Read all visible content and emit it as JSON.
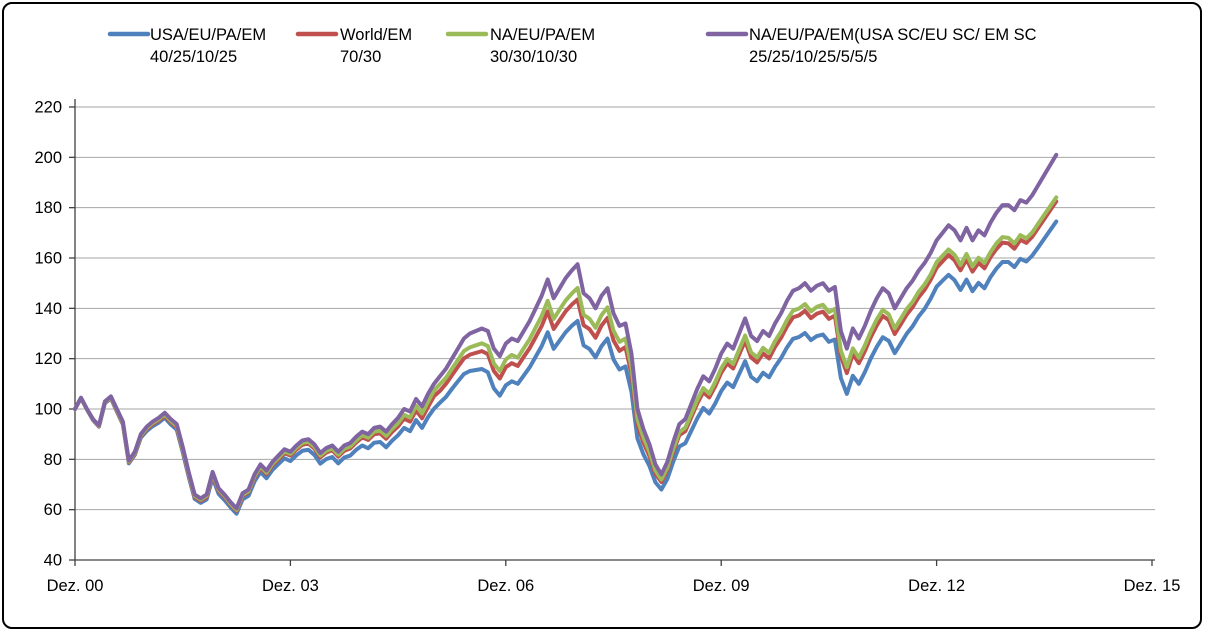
{
  "chart_data": {
    "type": "line",
    "title": "",
    "xlabel": "",
    "ylabel": "",
    "grid": true,
    "legend_position": "top",
    "x_axis": {
      "tick_labels": [
        "Dez. 00",
        "Dez. 03",
        "Dez. 06",
        "Dez. 09",
        "Dez. 12",
        "Dez. 15"
      ],
      "tick_month_index": [
        0,
        36,
        72,
        108,
        144,
        180
      ],
      "months_total": 180,
      "data_start_label": "Dez. 00",
      "data_points_monthly": 165
    },
    "y_axis": {
      "min": 40,
      "max": 220,
      "step": 20,
      "tick_labels": [
        "220",
        "200",
        "180",
        "160",
        "140",
        "120",
        "100",
        "80",
        "60",
        "40"
      ]
    },
    "colors": {
      "grid": "#A6A6A6",
      "axis": "#404040",
      "text": "#000000",
      "background": "#FFFFFF",
      "border": "#000000"
    },
    "series": [
      {
        "name": "USA/EU/PA/EM",
        "weights": "40/25/10/25",
        "color": "#4F81BD",
        "values": [
          100,
          104.4,
          99.8,
          95.6,
          93,
          102.3,
          104.2,
          99,
          93.9,
          78.4,
          81.8,
          88.6,
          91.3,
          93.2,
          94.6,
          96.5,
          93.9,
          91.8,
          82.9,
          73.1,
          64.3,
          62.7,
          64.1,
          72.7,
          66.3,
          63.8,
          60.9,
          58.4,
          64.1,
          65.5,
          71.2,
          75,
          72.5,
          75.8,
          78.1,
          80.4,
          79.3,
          81.6,
          83.4,
          83.8,
          81.8,
          78.3,
          80.1,
          80.9,
          78.4,
          80.7,
          81.5,
          83.8,
          85.5,
          84.4,
          86.6,
          86.9,
          84.8,
          87.4,
          89.6,
          92.5,
          91.2,
          95.6,
          92.5,
          96.8,
          100.1,
          102.5,
          104.8,
          108,
          111,
          113.9,
          115.1,
          115.5,
          115.9,
          114.6,
          108.2,
          105.3,
          109.4,
          111,
          110,
          113.3,
          116.6,
          120.8,
          125,
          130.5,
          123.9,
          127.2,
          130.5,
          133,
          135,
          125.3,
          123.8,
          120.5,
          125,
          128,
          119.7,
          115.7,
          116.9,
          106.8,
          88.3,
          82,
          77.4,
          70.9,
          68,
          72.2,
          79.2,
          85.1,
          86.4,
          91.3,
          96.3,
          100.4,
          98.2,
          102.2,
          107.1,
          110.5,
          108.7,
          113.9,
          119,
          112.8,
          111,
          114.4,
          112.6,
          116.8,
          120.2,
          124.5,
          127.9,
          128.6,
          130.2,
          127.4,
          129,
          129.6,
          126.7,
          127.6,
          112.3,
          106,
          113.2,
          110,
          114.6,
          120.1,
          124.7,
          128.5,
          127.1,
          122.2,
          126,
          129.9,
          132.9,
          136.8,
          139.8,
          143.8,
          148.6,
          151,
          153.3,
          151.2,
          147.3,
          151.4,
          146.8,
          150.1,
          148,
          152.4,
          155.8,
          158.4,
          158.4,
          156.4,
          159.7,
          158.6,
          161,
          164.3,
          167.7,
          171.1,
          174.5
        ]
      },
      {
        "name": "World/EM",
        "weights": "70/30",
        "color": "#C0504D",
        "values": [
          100,
          104.3,
          99.8,
          95.8,
          93.1,
          102.6,
          104.4,
          99.3,
          94.2,
          78.8,
          82.2,
          89.1,
          92.1,
          94,
          95.4,
          97.3,
          94.8,
          92.7,
          83.8,
          73.9,
          65,
          63.5,
          65,
          73.9,
          67.5,
          65,
          62,
          59.5,
          65.4,
          66.9,
          72.7,
          76.6,
          74.1,
          77.6,
          80,
          82.4,
          81.5,
          83.9,
          85.8,
          86.3,
          84.3,
          80.8,
          82.7,
          83.6,
          81.1,
          83.4,
          84.3,
          86.7,
          88.7,
          87.7,
          90,
          90.3,
          88.2,
          90.9,
          93.1,
          96.2,
          95,
          99.5,
          96.3,
          100.8,
          105.1,
          107.2,
          110,
          113.4,
          116.8,
          120.1,
          121.6,
          122.3,
          123,
          121.8,
          115.1,
          112.1,
          116.6,
          118.2,
          117.1,
          120.7,
          124.2,
          128.6,
          133,
          138.8,
          131.8,
          135.3,
          138.8,
          141.4,
          143.5,
          133.3,
          131.7,
          128.3,
          133.2,
          136.2,
          127.2,
          123.1,
          124.6,
          113.9,
          93.7,
          86.6,
          81.3,
          74.3,
          71,
          75.7,
          83.1,
          89.6,
          91.2,
          96.7,
          102.2,
          106.7,
          104.6,
          109,
          114.4,
          118.1,
          116.1,
          121.6,
          127.1,
          120.5,
          118.5,
          122.1,
          120.1,
          124.7,
          128.3,
          132.8,
          136.4,
          137.2,
          139,
          136.1,
          137.9,
          138.7,
          135.8,
          137.1,
          120.9,
          114.3,
          121.8,
          118.2,
          122.9,
          128.5,
          133.2,
          137,
          135.3,
          129.8,
          133.6,
          137.5,
          140.5,
          144.4,
          147.4,
          151.3,
          156.1,
          158.7,
          161.2,
          159.1,
          155.1,
          159.5,
          154.6,
          158.1,
          155.9,
          160.3,
          163.6,
          166.1,
          165.8,
          163.7,
          167.2,
          166,
          168.5,
          172,
          175.5,
          179,
          182.5
        ]
      },
      {
        "name": "NA/EU/PA/EM",
        "weights": "30/30/10/30",
        "color": "#9BBB59",
        "values": [
          100,
          104.4,
          99.9,
          95.9,
          93.3,
          102.8,
          104.6,
          99.6,
          94.5,
          79.1,
          82.6,
          89.5,
          92.5,
          94.5,
          95.9,
          97.9,
          95.3,
          93.3,
          84.3,
          74.4,
          65.5,
          64,
          65.5,
          74.4,
          68,
          65.5,
          62.4,
          59.9,
          65.9,
          67.3,
          73.3,
          77.2,
          74.7,
          78.2,
          80.6,
          83.1,
          82.2,
          84.6,
          86.5,
          87,
          85,
          81.5,
          83.4,
          84.3,
          81.8,
          84.2,
          85.1,
          87.5,
          89.6,
          88.6,
          91,
          91.4,
          89.3,
          92.1,
          94.4,
          97.7,
          96.6,
          101.3,
          98.2,
          102.9,
          107.3,
          109.9,
          112.4,
          116,
          119.5,
          123,
          124.5,
          125.3,
          126.1,
          125,
          118.1,
          115.1,
          119.7,
          121.5,
          120.4,
          124.1,
          127.8,
          132.4,
          137,
          143,
          135.8,
          139.5,
          143.1,
          145.8,
          148.1,
          137.5,
          135.8,
          132.3,
          137.3,
          140.4,
          131.1,
          126.7,
          128,
          116.8,
          96,
          88.6,
          83,
          75.6,
          72,
          76.7,
          84.3,
          90.8,
          92.6,
          98.1,
          103.7,
          108.3,
          106.1,
          110.7,
          116.1,
          119.9,
          117.9,
          123.6,
          129.2,
          122.5,
          120.5,
          124.3,
          122.3,
          127,
          130.7,
          135.4,
          139.1,
          139.9,
          141.7,
          138.8,
          140.6,
          141.4,
          138.5,
          139.8,
          123.2,
          116.6,
          124.1,
          120.4,
          125.2,
          130.8,
          135.6,
          139.4,
          137.6,
          132,
          135.8,
          139.7,
          142.6,
          146.6,
          149.5,
          153.4,
          158.3,
          160.9,
          163.4,
          161.3,
          157.2,
          161.6,
          156.6,
          160.1,
          158,
          162.3,
          165.8,
          168.3,
          168,
          165.8,
          169.1,
          167.8,
          170.2,
          173.7,
          177.2,
          180.6,
          184.1
        ]
      },
      {
        "name": "NA/EU/PA/EM(USA SC/EU SC/ EM SC",
        "weights": "25/25/10/25/5/5/5",
        "color": "#8064A2",
        "values": [
          100,
          104.5,
          100,
          96,
          93.5,
          103,
          105,
          100,
          95,
          79.5,
          83,
          90,
          93,
          95,
          96.5,
          98.5,
          96,
          94,
          85,
          75,
          66,
          64.5,
          66,
          75,
          68.5,
          66,
          63,
          60.5,
          66.5,
          68,
          74,
          78,
          75.5,
          79,
          81.5,
          84,
          83,
          85.5,
          87.5,
          88,
          86,
          82.5,
          84.5,
          85.5,
          83,
          85.5,
          86.5,
          89,
          91,
          90,
          92.5,
          93,
          91,
          94,
          96.5,
          100,
          99,
          104,
          101,
          106,
          110,
          113,
          116,
          120,
          124,
          128,
          130,
          131,
          132,
          131,
          124,
          121,
          126,
          128,
          127,
          131,
          135,
          140,
          145,
          151.5,
          144,
          148,
          152,
          155,
          157.5,
          146,
          144,
          140,
          145,
          148,
          138,
          133,
          134,
          122,
          100,
          92,
          86,
          78,
          74,
          79,
          87,
          94,
          96,
          102,
          108,
          113,
          111,
          116,
          122,
          126,
          124,
          130,
          136,
          129,
          127,
          131,
          129,
          134,
          138,
          143,
          147,
          148,
          150,
          147,
          149,
          150,
          147,
          148.5,
          131,
          124,
          132,
          128,
          133,
          139,
          144,
          148,
          146,
          140,
          144,
          148,
          151,
          155,
          158,
          162,
          167,
          170,
          173,
          171,
          167,
          172,
          167,
          171,
          169,
          174,
          178,
          181,
          181,
          179,
          183,
          182,
          185,
          189,
          193,
          197,
          201
        ]
      }
    ]
  }
}
